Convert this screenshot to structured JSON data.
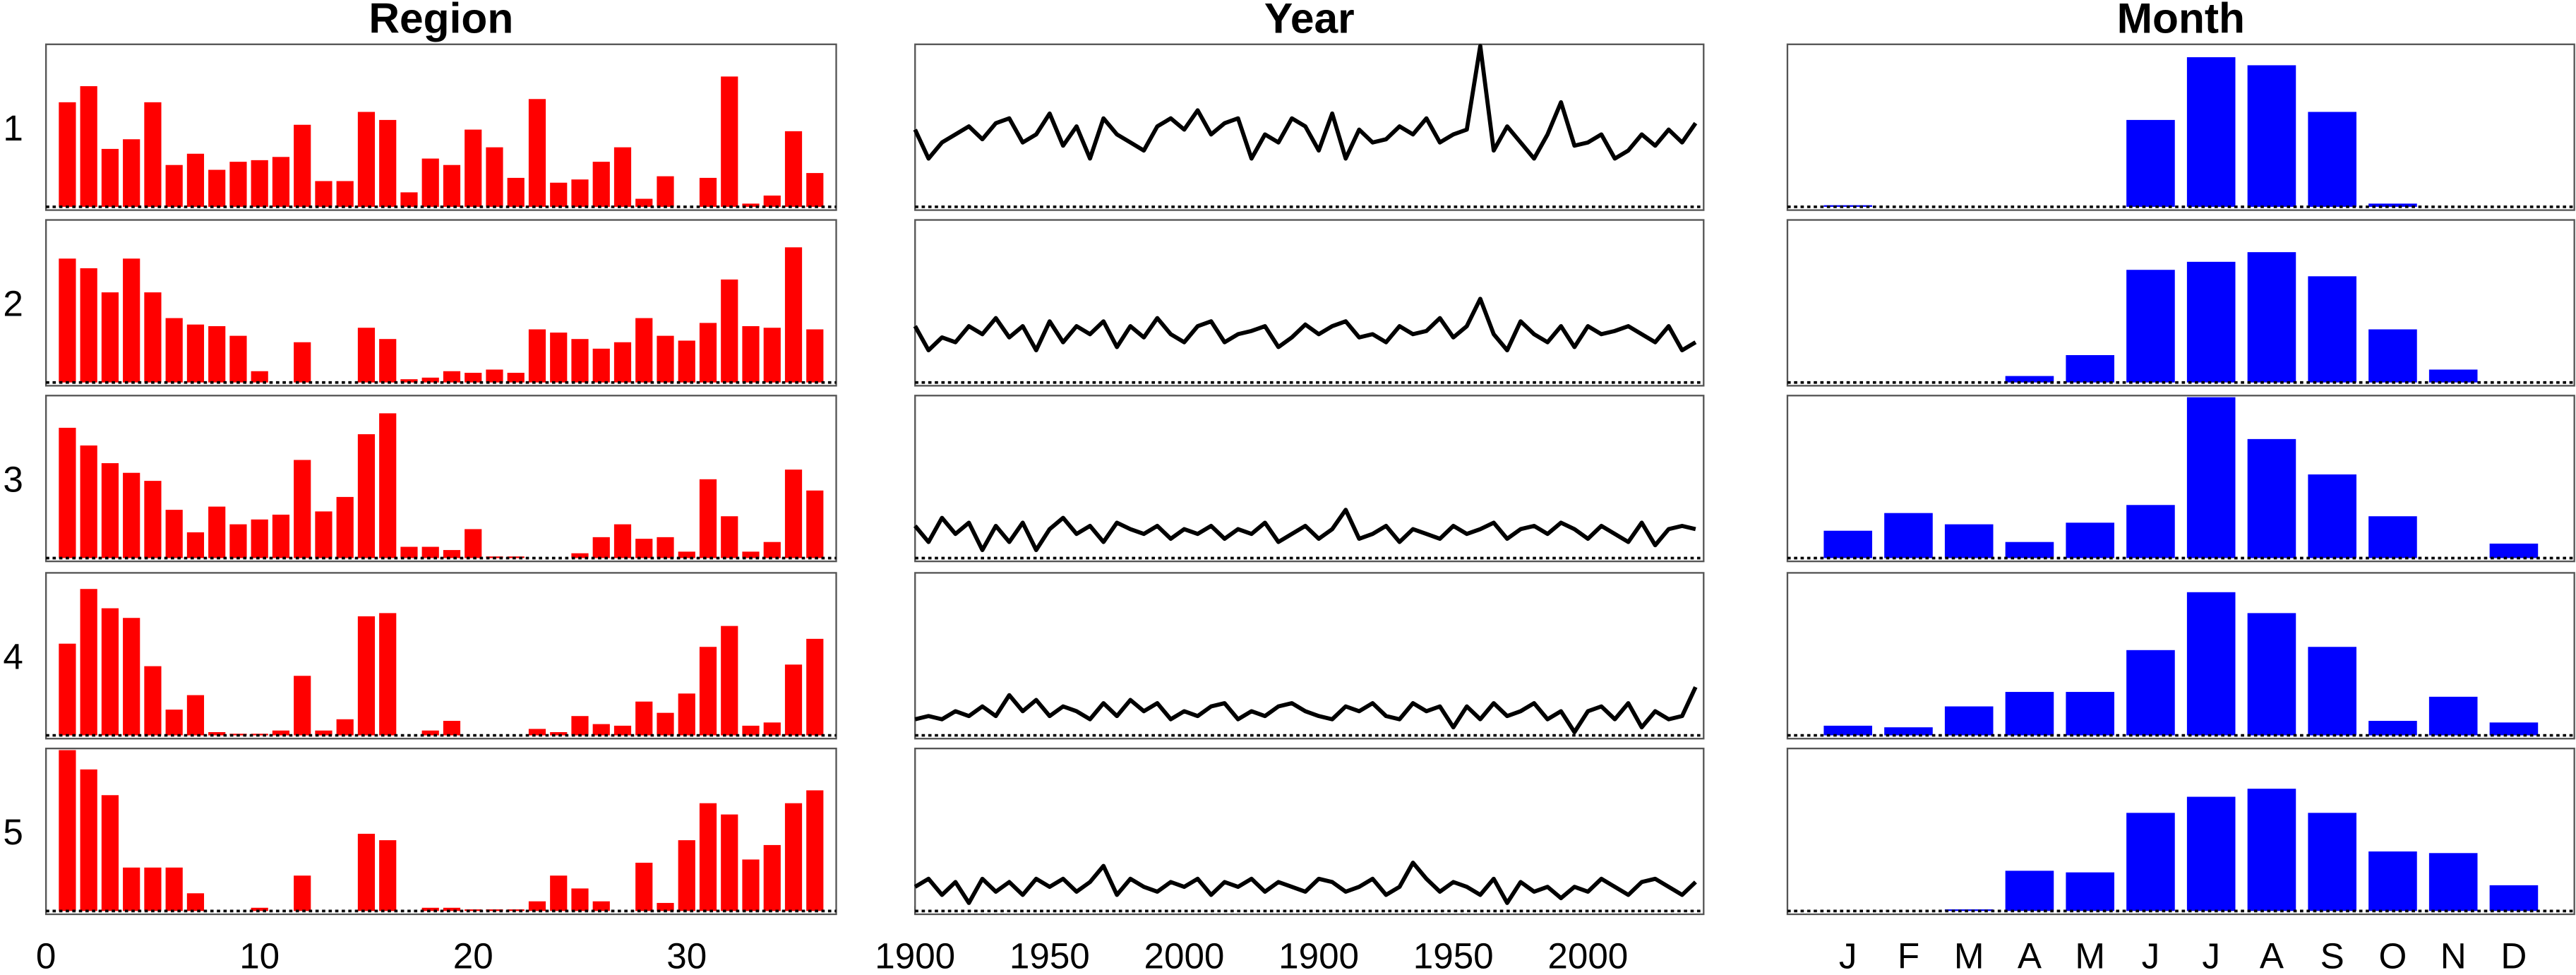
{
  "chart_data": [
    {
      "type": "bar",
      "title": "Region",
      "color": "#ff0000",
      "x": [
        1,
        2,
        3,
        4,
        5,
        6,
        7,
        8,
        9,
        10,
        11,
        12,
        13,
        14,
        15,
        16,
        17,
        18,
        19,
        20,
        21,
        22,
        23,
        24,
        25,
        26,
        27,
        28,
        29,
        30,
        31,
        32,
        33,
        34,
        35,
        36
      ],
      "xlim": [
        0,
        37
      ],
      "xticks": [
        0,
        10,
        20,
        30
      ],
      "ylim": [
        0,
        1
      ],
      "panels": [
        {
          "label": "1",
          "values": [
            0.65,
            0.75,
            0.36,
            0.42,
            0.65,
            0.26,
            0.33,
            0.23,
            0.28,
            0.29,
            0.31,
            0.51,
            0.16,
            0.16,
            0.59,
            0.54,
            0.09,
            0.3,
            0.26,
            0.48,
            0.37,
            0.18,
            0.67,
            0.15,
            0.17,
            0.28,
            0.37,
            0.05,
            0.19,
            0,
            0.18,
            0.81,
            0.02,
            0.07,
            0.47,
            0.21
          ]
        },
        {
          "label": "2",
          "values": [
            0.77,
            0.71,
            0.56,
            0.77,
            0.56,
            0.4,
            0.36,
            0.35,
            0.29,
            0.07,
            0,
            0.25,
            0,
            0,
            0.34,
            0.27,
            0.02,
            0.03,
            0.07,
            0.06,
            0.08,
            0.06,
            0.33,
            0.31,
            0.27,
            0.21,
            0.25,
            0.4,
            0.29,
            0.26,
            0.37,
            0.64,
            0.35,
            0.34,
            0.84,
            0.33
          ]
        },
        {
          "label": "3",
          "values": [
            0.81,
            0.7,
            0.59,
            0.53,
            0.48,
            0.3,
            0.16,
            0.32,
            0.21,
            0.24,
            0.27,
            0.61,
            0.29,
            0.38,
            0.77,
            0.9,
            0.07,
            0.07,
            0.05,
            0.18,
            0.01,
            0.01,
            0,
            0,
            0.03,
            0.13,
            0.21,
            0.12,
            0.13,
            0.04,
            0.49,
            0.26,
            0.04,
            0.1,
            0.55,
            0.42
          ]
        },
        {
          "label": "4",
          "values": [
            0.57,
            0.91,
            0.79,
            0.73,
            0.43,
            0.16,
            0.25,
            0.02,
            0.01,
            0.01,
            0.03,
            0.37,
            0.03,
            0.1,
            0.74,
            0.76,
            0,
            0.03,
            0.09,
            0,
            0,
            0,
            0.04,
            0.02,
            0.12,
            0.07,
            0.06,
            0.21,
            0.14,
            0.26,
            0.55,
            0.68,
            0.06,
            0.08,
            0.44,
            0.6
          ]
        },
        {
          "label": "5",
          "values": [
            1.0,
            0.88,
            0.72,
            0.27,
            0.27,
            0.27,
            0.11,
            0,
            0,
            0.02,
            0,
            0.22,
            0,
            0,
            0.48,
            0.44,
            0,
            0.02,
            0.02,
            0.01,
            0.01,
            0.01,
            0.06,
            0.22,
            0.14,
            0.06,
            0,
            0.3,
            0.05,
            0.44,
            0.67,
            0.6,
            0.32,
            0.41,
            0.67,
            0.75
          ]
        }
      ]
    },
    {
      "type": "line",
      "title": "Year",
      "color": "#000000",
      "x": [
        0,
        5,
        10,
        15,
        20,
        25,
        30,
        35,
        40,
        45,
        50,
        55,
        60,
        65,
        70,
        75,
        80,
        85,
        90,
        95,
        100,
        105,
        110,
        115,
        120,
        125,
        130,
        135,
        140,
        145,
        150,
        155,
        160,
        165,
        170,
        175,
        180,
        185,
        190,
        195,
        200,
        205,
        210,
        215,
        220,
        225,
        230,
        235,
        240,
        245,
        250,
        255,
        260,
        265,
        270,
        275,
        280,
        285,
        290
      ],
      "xlim": [
        0,
        293
      ],
      "xticks": [
        {
          "value": 0,
          "label": "1900"
        },
        {
          "value": 50,
          "label": "1950"
        },
        {
          "value": 100,
          "label": "2000"
        },
        {
          "value": 150,
          "label": "1900"
        },
        {
          "value": 200,
          "label": "1950"
        },
        {
          "value": 250,
          "label": "2000"
        }
      ],
      "ylim": [
        0,
        1
      ],
      "panels": [
        {
          "values": [
            0.48,
            0.3,
            0.4,
            0.45,
            0.5,
            0.42,
            0.52,
            0.55,
            0.4,
            0.45,
            0.58,
            0.38,
            0.5,
            0.3,
            0.55,
            0.45,
            0.4,
            0.35,
            0.5,
            0.55,
            0.48,
            0.6,
            0.45,
            0.52,
            0.55,
            0.3,
            0.45,
            0.4,
            0.55,
            0.5,
            0.35,
            0.58,
            0.3,
            0.48,
            0.4,
            0.42,
            0.5,
            0.45,
            0.55,
            0.4,
            0.45,
            0.48,
            1.0,
            0.35,
            0.5,
            0.4,
            0.3,
            0.45,
            0.65,
            0.38,
            0.4,
            0.45,
            0.3,
            0.35,
            0.45,
            0.38,
            0.48,
            0.4,
            0.52
          ]
        },
        {
          "values": [
            0.35,
            0.2,
            0.28,
            0.25,
            0.35,
            0.3,
            0.4,
            0.28,
            0.35,
            0.2,
            0.38,
            0.25,
            0.35,
            0.3,
            0.38,
            0.22,
            0.35,
            0.28,
            0.4,
            0.3,
            0.25,
            0.35,
            0.38,
            0.25,
            0.3,
            0.32,
            0.35,
            0.22,
            0.28,
            0.36,
            0.3,
            0.35,
            0.38,
            0.28,
            0.3,
            0.25,
            0.35,
            0.3,
            0.32,
            0.4,
            0.28,
            0.35,
            0.52,
            0.3,
            0.2,
            0.38,
            0.3,
            0.25,
            0.35,
            0.22,
            0.35,
            0.3,
            0.32,
            0.35,
            0.3,
            0.25,
            0.35,
            0.2,
            0.25
          ]
        },
        {
          "values": [
            0.2,
            0.1,
            0.25,
            0.15,
            0.22,
            0.05,
            0.2,
            0.1,
            0.22,
            0.05,
            0.18,
            0.25,
            0.15,
            0.2,
            0.1,
            0.22,
            0.18,
            0.15,
            0.2,
            0.12,
            0.18,
            0.15,
            0.2,
            0.12,
            0.18,
            0.15,
            0.22,
            0.1,
            0.15,
            0.2,
            0.12,
            0.18,
            0.3,
            0.12,
            0.15,
            0.2,
            0.1,
            0.18,
            0.15,
            0.12,
            0.2,
            0.15,
            0.18,
            0.22,
            0.12,
            0.18,
            0.2,
            0.15,
            0.22,
            0.18,
            0.12,
            0.2,
            0.15,
            0.1,
            0.22,
            0.08,
            0.18,
            0.2,
            0.18
          ]
        },
        {
          "values": [
            0.1,
            0.12,
            0.1,
            0.15,
            0.12,
            0.18,
            0.12,
            0.25,
            0.15,
            0.22,
            0.12,
            0.18,
            0.15,
            0.1,
            0.2,
            0.12,
            0.22,
            0.15,
            0.2,
            0.1,
            0.15,
            0.12,
            0.18,
            0.2,
            0.1,
            0.15,
            0.12,
            0.18,
            0.2,
            0.15,
            0.12,
            0.1,
            0.18,
            0.15,
            0.2,
            0.12,
            0.1,
            0.2,
            0.15,
            0.18,
            0.05,
            0.18,
            0.1,
            0.2,
            0.12,
            0.15,
            0.2,
            0.1,
            0.15,
            0.02,
            0.15,
            0.18,
            0.1,
            0.2,
            0.05,
            0.15,
            0.1,
            0.12,
            0.3
          ]
        },
        {
          "values": [
            0.15,
            0.2,
            0.1,
            0.18,
            0.05,
            0.2,
            0.12,
            0.18,
            0.1,
            0.2,
            0.15,
            0.2,
            0.12,
            0.18,
            0.28,
            0.1,
            0.2,
            0.15,
            0.12,
            0.18,
            0.15,
            0.2,
            0.1,
            0.18,
            0.15,
            0.2,
            0.12,
            0.18,
            0.15,
            0.12,
            0.2,
            0.18,
            0.12,
            0.15,
            0.2,
            0.1,
            0.15,
            0.3,
            0.2,
            0.12,
            0.18,
            0.15,
            0.1,
            0.2,
            0.05,
            0.18,
            0.12,
            0.15,
            0.08,
            0.15,
            0.12,
            0.2,
            0.15,
            0.1,
            0.18,
            0.2,
            0.15,
            0.1,
            0.18
          ]
        }
      ]
    },
    {
      "type": "bar",
      "title": "Month",
      "color": "#0000ff",
      "categories": [
        "J",
        "F",
        "M",
        "A",
        "M",
        "J",
        "J",
        "A",
        "S",
        "O",
        "N",
        "D"
      ],
      "ylim": [
        0,
        1
      ],
      "panels": [
        {
          "values": [
            0.01,
            0,
            0,
            0,
            0,
            0.54,
            0.93,
            0.88,
            0.59,
            0.02,
            0,
            0
          ]
        },
        {
          "values": [
            0,
            0,
            0,
            0.04,
            0.17,
            0.7,
            0.75,
            0.81,
            0.66,
            0.33,
            0.08,
            0
          ]
        },
        {
          "values": [
            0.17,
            0.28,
            0.21,
            0.1,
            0.22,
            0.33,
            1.0,
            0.74,
            0.52,
            0.26,
            0,
            0.09
          ]
        },
        {
          "values": [
            0.06,
            0.05,
            0.18,
            0.27,
            0.27,
            0.53,
            0.89,
            0.76,
            0.55,
            0.09,
            0.24,
            0.08
          ]
        },
        {
          "values": [
            0,
            0,
            0.01,
            0.25,
            0.24,
            0.61,
            0.71,
            0.76,
            0.61,
            0.37,
            0.36,
            0.16
          ]
        }
      ]
    }
  ]
}
